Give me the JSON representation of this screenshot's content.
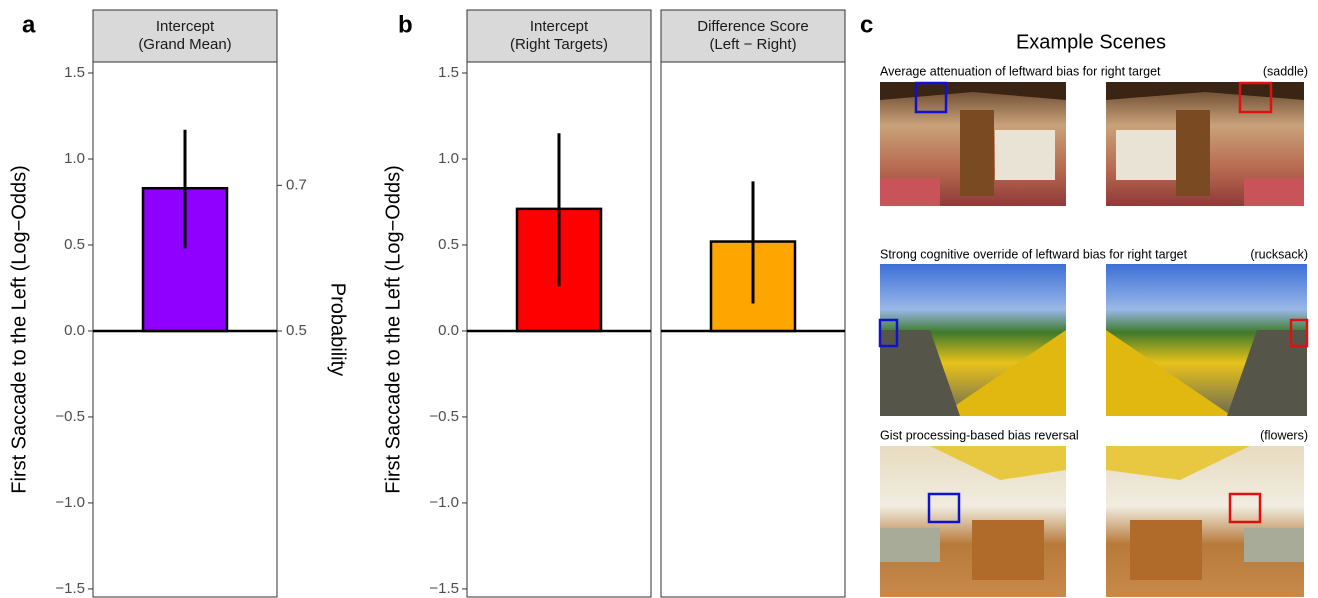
{
  "chart_data": [
    {
      "type": "bar",
      "panel_label": "a",
      "categories": [
        [
          "Intercept",
          "(Grand Mean)"
        ]
      ],
      "values": [
        0.83
      ],
      "ci_low": [
        0.48
      ],
      "ci_high": [
        1.17
      ],
      "colors": [
        "#8f00ff"
      ],
      "ylabel": "First Saccade to the Left (Log−Odds)",
      "ylim": [
        -1.547,
        1.564
      ],
      "yticks": [
        {
          "value": -1.5,
          "label": "−1.5"
        },
        {
          "value": -1,
          "label": "−1.0"
        },
        {
          "value": -0.5,
          "label": "−0.5"
        },
        {
          "value": 0,
          "label": "0.0"
        },
        0.5,
        {
          "value": 1,
          "label": "1.0"
        },
        1.5
      ],
      "y2label": "Probability",
      "y2scale": "logit",
      "y2lim": [
        0.1755,
        0.827
      ],
      "y2ticks": [
        0.5,
        0.7
      ]
    },
    {
      "type": "bar",
      "panel_label": "b",
      "categories": [
        [
          "Intercept",
          "(Right Targets)"
        ],
        [
          "Difference Score",
          "(Left − Right)"
        ]
      ],
      "values": [
        0.71,
        0.52
      ],
      "ci_low": [
        0.26,
        0.16
      ],
      "ci_high": [
        1.15,
        0.87
      ],
      "colors": [
        "#ff0000",
        "#ffa500"
      ],
      "ylabel": "First Saccade to the Left (Log−Odds)",
      "ylim": [
        -1.547,
        1.564
      ],
      "yticks": [
        {
          "value": -1.5,
          "label": "−1.5"
        },
        {
          "value": -1,
          "label": "−1.0"
        },
        {
          "value": -0.5,
          "label": "−0.5"
        },
        {
          "value": 0,
          "label": "0.0"
        },
        0.5,
        {
          "value": 1,
          "label": "1.0"
        },
        1.5
      ]
    }
  ],
  "panel_c": {
    "label": "c",
    "title": "Example Scenes",
    "scenes": [
      {
        "caption": "Average attenuation of leftward bias for right target",
        "target": "(saddle)"
      },
      {
        "caption": "Strong cognitive override of leftward bias for right target",
        "target": "(rucksack)"
      },
      {
        "caption": "Gist processing-based bias reversal",
        "target": "(flowers)"
      }
    ]
  }
}
